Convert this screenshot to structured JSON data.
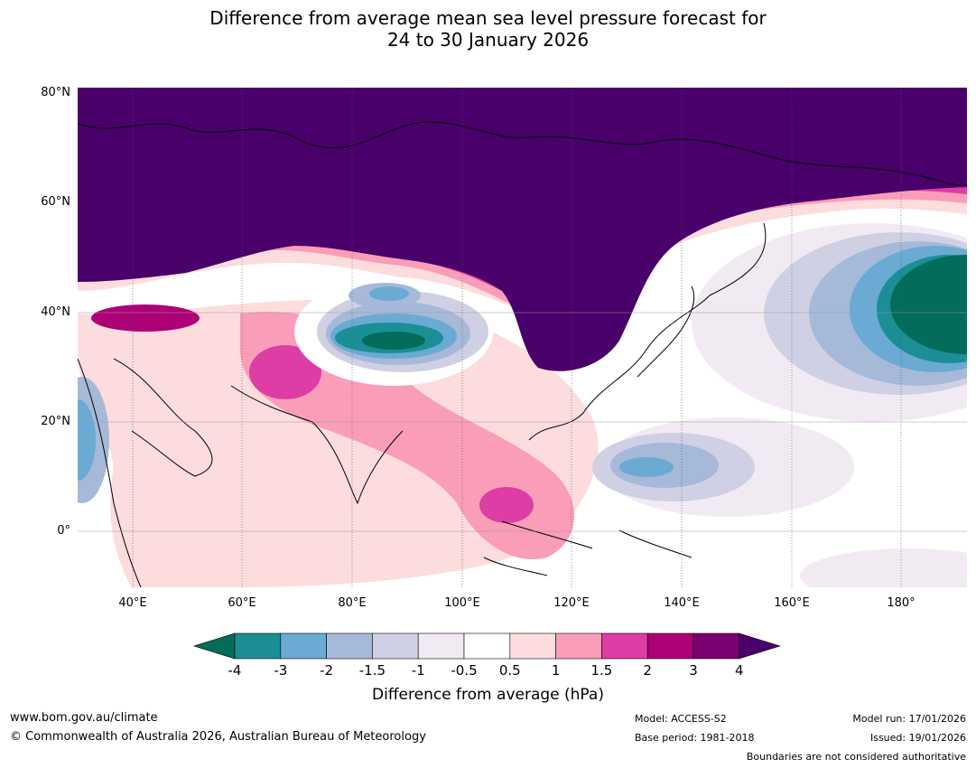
{
  "title": {
    "line1": "Difference from average mean sea level pressure forecast for",
    "line2": "24 to 30 January 2026"
  },
  "map": {
    "lat_labels": [
      "80°N",
      "60°N",
      "40°N",
      "20°N",
      "0°"
    ],
    "lon_labels": [
      "40°E",
      "60°E",
      "80°E",
      "100°E",
      "120°E",
      "140°E",
      "160°E",
      "180°"
    ],
    "lon_range": [
      30,
      190
    ],
    "lat_range": [
      -10,
      80
    ]
  },
  "colorbar": {
    "title": "Difference from average (hPa)",
    "ticks": [
      "-4",
      "-3",
      "-2",
      "-1.5",
      "-1",
      "-0.5",
      "0.5",
      "1",
      "1.5",
      "2",
      "3",
      "4"
    ],
    "colors": [
      "#036c5b",
      "#1b8e96",
      "#6aaad3",
      "#a6b9d8",
      "#cfd0e4",
      "#f2eaf3",
      "#ffffff",
      "#fddcdd",
      "#f99db8",
      "#dd3da4",
      "#ad0177",
      "#7b0172",
      "#49006a"
    ]
  },
  "footer": {
    "website": "www.bom.gov.au/climate",
    "copyright": "© Commonwealth of Australia 2026, Australian Bureau of Meteorology",
    "model": "Model: ACCESS-S2",
    "base_period": "Base period: 1981-2018",
    "model_run": "Model run: 17/01/2026",
    "issued": "Issued: 19/01/2026",
    "disclaimer": "Boundaries are not considered authoritative"
  }
}
